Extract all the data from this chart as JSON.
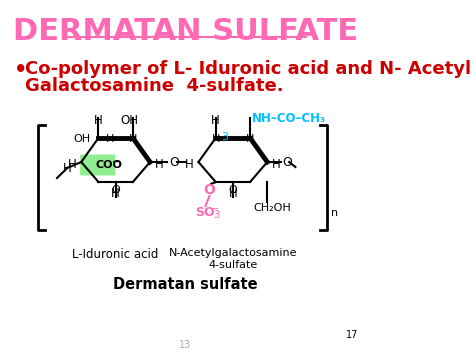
{
  "title": "DERMATAN SULFATE",
  "title_color": "#FF69B4",
  "title_fontsize": 22,
  "bullet_text_line1": "Co-polymer of L- Iduronic acid and N- Acetyl",
  "bullet_text_line2": "Galactosamine  4-sulfate.",
  "bullet_color": "#CC0000",
  "bullet_fontsize": 13,
  "caption_main": "Dermatan sulfate",
  "caption_left": "L-Iduronic acid",
  "caption_right": "N-Acetylgalactosamine\n4-sulfate",
  "so3_color": "#FF69B4",
  "nh_color": "#00BFFF",
  "coo_bg": "#90EE90",
  "o_color": "#FF69B4",
  "num3_color": "#00BFFF",
  "bg_color": "#FFFFFF",
  "page_num": "17",
  "page_num2": "13"
}
